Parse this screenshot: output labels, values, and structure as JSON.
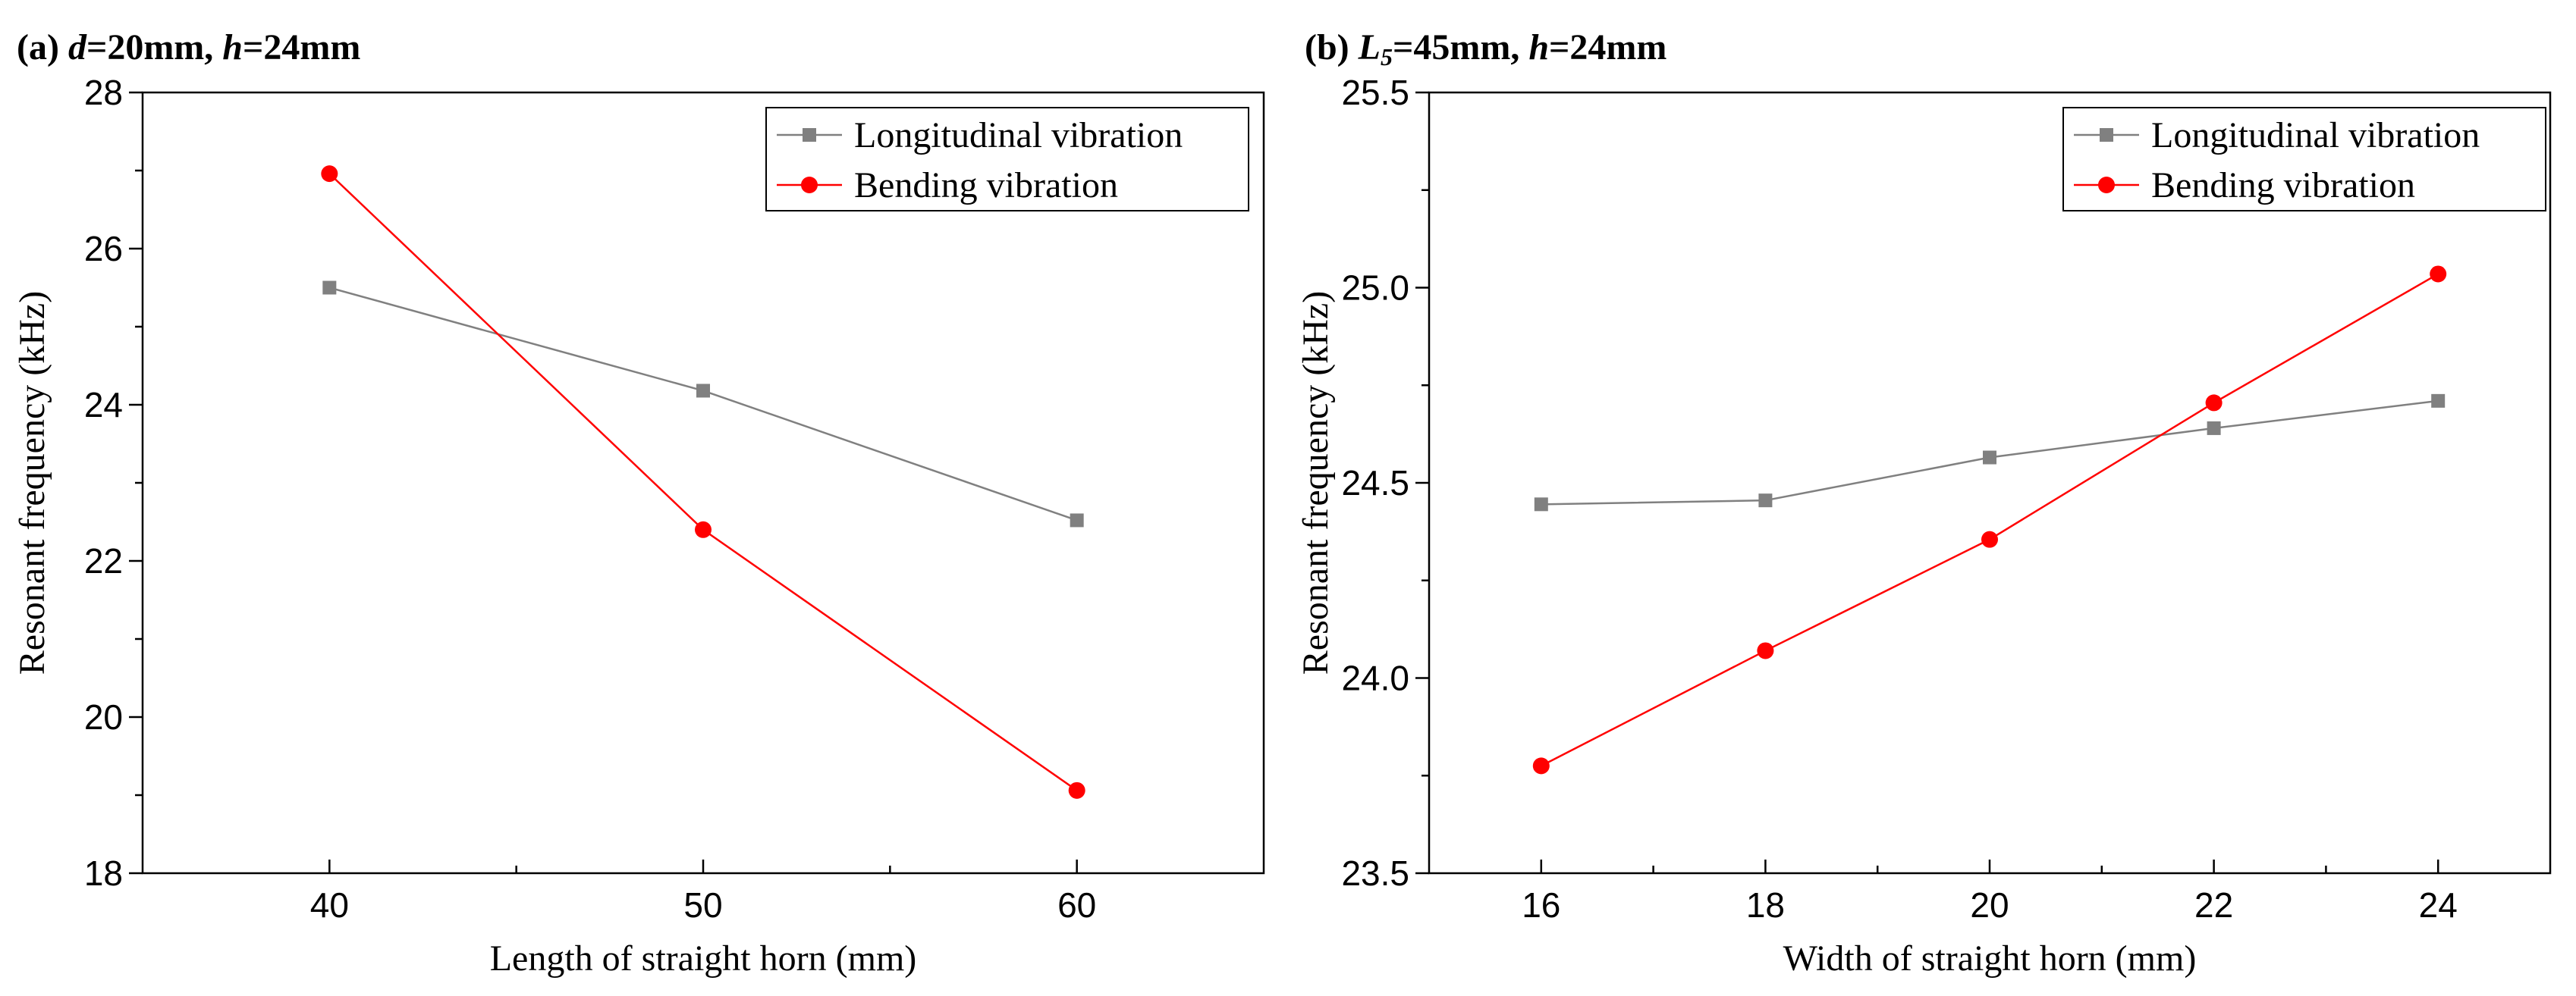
{
  "chart_data": [
    {
      "type": "line",
      "panel_label": "(a)",
      "title_parts": [
        {
          "text": "(a) ",
          "italic": false
        },
        {
          "text": "d",
          "italic": true
        },
        {
          "text": "=20mm, ",
          "italic": false
        },
        {
          "text": "h",
          "italic": true
        },
        {
          "text": "=24mm",
          "italic": false
        }
      ],
      "xlabel": "Length of straight horn (mm)",
      "ylabel": "Resonant frequency (kHz)",
      "xlim": [
        35,
        65
      ],
      "ylim": [
        18,
        28
      ],
      "xticks": [
        40,
        50,
        60
      ],
      "xtick_labels": [
        "40",
        "50",
        "60"
      ],
      "xminor": [
        45,
        55
      ],
      "yticks": [
        18,
        20,
        22,
        24,
        26,
        28
      ],
      "ytick_labels": [
        "18",
        "20",
        "22",
        "24",
        "26",
        "28"
      ],
      "yminor": [
        19,
        21,
        23,
        25,
        27
      ],
      "legend_position": "top-right",
      "grid": false,
      "x": [
        40,
        50,
        60
      ],
      "series": [
        {
          "name": "Longitudinal vibration",
          "values": [
            25.5,
            24.18,
            22.52
          ],
          "color": "#808080",
          "marker": "square"
        },
        {
          "name": "Bending vibration",
          "values": [
            26.96,
            22.4,
            19.06
          ],
          "color": "#ff0000",
          "marker": "circle"
        }
      ]
    },
    {
      "type": "line",
      "panel_label": "(b)",
      "title_parts": [
        {
          "text": "(b) ",
          "italic": false
        },
        {
          "text": "L",
          "italic": true
        },
        {
          "text": "5",
          "italic": true,
          "subscript": true
        },
        {
          "text": "=45mm, ",
          "italic": false
        },
        {
          "text": "h",
          "italic": true
        },
        {
          "text": "=24mm",
          "italic": false
        }
      ],
      "xlabel": "Width of straight horn (mm)",
      "ylabel": "Resonant frequency (kHz)",
      "xlim": [
        15,
        25
      ],
      "ylim": [
        23.5,
        25.5
      ],
      "xticks": [
        16,
        18,
        20,
        22,
        24
      ],
      "xtick_labels": [
        "16",
        "18",
        "20",
        "22",
        "24"
      ],
      "xminor": [
        17,
        19,
        21,
        23
      ],
      "yticks": [
        23.5,
        24.0,
        24.5,
        25.0,
        25.5
      ],
      "ytick_labels": [
        "23.5",
        "24.0",
        "24.5",
        "25.0",
        "25.5"
      ],
      "yminor": [
        23.75,
        24.25,
        24.75,
        25.25
      ],
      "legend_position": "top-right",
      "grid": false,
      "x": [
        16,
        18,
        20,
        22,
        24
      ],
      "series": [
        {
          "name": "Longitudinal vibration",
          "values": [
            24.445,
            24.455,
            24.565,
            24.64,
            24.71
          ],
          "color": "#808080",
          "marker": "square"
        },
        {
          "name": "Bending vibration",
          "values": [
            23.775,
            24.07,
            24.355,
            24.705,
            25.035
          ],
          "color": "#ff0000",
          "marker": "circle"
        }
      ]
    }
  ]
}
